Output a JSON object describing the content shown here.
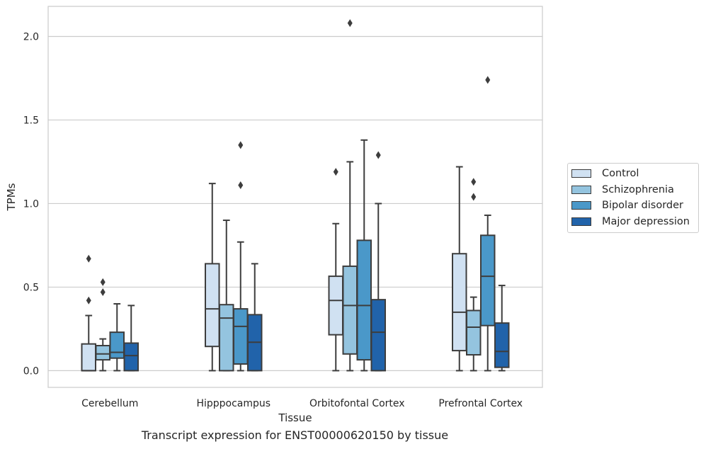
{
  "caption": "Transcript expression for ENST00000620150 by tissue",
  "chart_data": {
    "type": "box",
    "xlabel": "Tissue",
    "ylabel": "TPMs",
    "ylim": [
      -0.1,
      2.18
    ],
    "yticks": [
      "0.0",
      "0.5",
      "1.0",
      "1.5",
      "2.0"
    ],
    "grid": true,
    "legend_position": "right",
    "categories": [
      "Cerebellum",
      "Hipppocampus",
      "Orbitofontal Cortex",
      "Prefrontal Cortex"
    ],
    "series": [
      {
        "name": "Control",
        "color": "#d0e1f2",
        "boxes": [
          {
            "whislo": 0,
            "q1": 0,
            "med": 0,
            "q3": 0.16,
            "whishi": 0.33,
            "fliers": [
              0.42,
              0.67
            ]
          },
          {
            "whislo": 0,
            "q1": 0.145,
            "med": 0.37,
            "q3": 0.64,
            "whishi": 1.12,
            "fliers": []
          },
          {
            "whislo": 0,
            "q1": 0.215,
            "med": 0.42,
            "q3": 0.565,
            "whishi": 0.88,
            "fliers": [
              1.19
            ]
          },
          {
            "whislo": 0,
            "q1": 0.12,
            "med": 0.35,
            "q3": 0.7,
            "whishi": 1.22,
            "fliers": []
          }
        ]
      },
      {
        "name": "Schizophrenia",
        "color": "#94c4df",
        "boxes": [
          {
            "whislo": 0,
            "q1": 0.065,
            "med": 0.1,
            "q3": 0.15,
            "whishi": 0.19,
            "fliers": [
              0.47,
              0.53
            ]
          },
          {
            "whislo": 0,
            "q1": 0,
            "med": 0.315,
            "q3": 0.395,
            "whishi": 0.9,
            "fliers": []
          },
          {
            "whislo": 0,
            "q1": 0.1,
            "med": 0.39,
            "q3": 0.625,
            "whishi": 1.25,
            "fliers": [
              2.08
            ]
          },
          {
            "whislo": 0,
            "q1": 0.095,
            "med": 0.26,
            "q3": 0.36,
            "whishi": 0.44,
            "fliers": [
              1.04,
              1.13
            ]
          }
        ]
      },
      {
        "name": "Bipolar disorder",
        "color": "#4a98c9",
        "boxes": [
          {
            "whislo": 0,
            "q1": 0.075,
            "med": 0.11,
            "q3": 0.23,
            "whishi": 0.4,
            "fliers": []
          },
          {
            "whislo": 0,
            "q1": 0.04,
            "med": 0.265,
            "q3": 0.37,
            "whishi": 0.77,
            "fliers": [
              1.11,
              1.35
            ]
          },
          {
            "whislo": 0,
            "q1": 0.065,
            "med": 0.39,
            "q3": 0.78,
            "whishi": 1.38,
            "fliers": []
          },
          {
            "whislo": 0,
            "q1": 0.27,
            "med": 0.565,
            "q3": 0.81,
            "whishi": 0.93,
            "fliers": [
              1.74
            ]
          }
        ]
      },
      {
        "name": "Major depression",
        "color": "#2163aa",
        "boxes": [
          {
            "whislo": 0,
            "q1": 0,
            "med": 0.09,
            "q3": 0.165,
            "whishi": 0.39,
            "fliers": []
          },
          {
            "whislo": 0,
            "q1": 0,
            "med": 0.17,
            "q3": 0.335,
            "whishi": 0.64,
            "fliers": []
          },
          {
            "whislo": 0,
            "q1": 0,
            "med": 0.23,
            "q3": 0.425,
            "whishi": 1.0,
            "fliers": [
              1.29
            ]
          },
          {
            "whislo": 0,
            "q1": 0.02,
            "med": 0.115,
            "q3": 0.285,
            "whishi": 0.51,
            "fliers": []
          }
        ]
      }
    ]
  }
}
